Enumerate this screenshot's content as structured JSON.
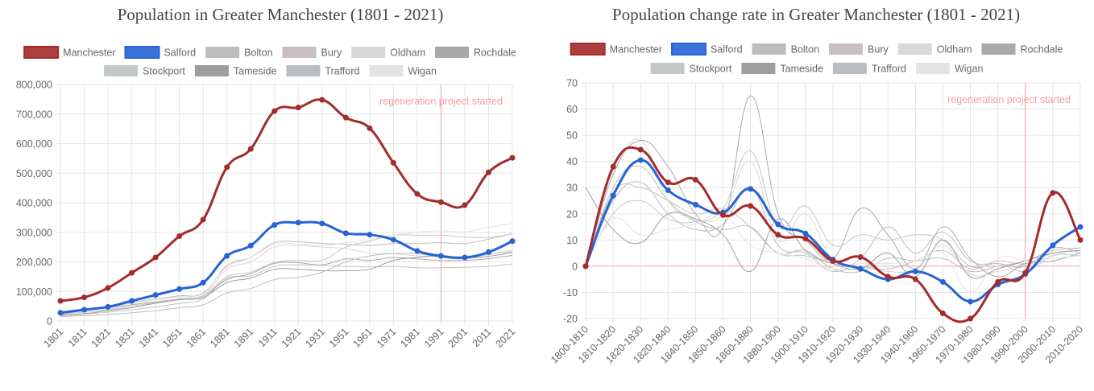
{
  "chart_data": [
    {
      "type": "line",
      "title": "Population in Greater Manchester (1801 - 2021)",
      "categories": [
        "1801",
        "1811",
        "1821",
        "1831",
        "1841",
        "1851",
        "1861",
        "1881",
        "1891",
        "1911",
        "1921",
        "1931",
        "1951",
        "1961",
        "1971",
        "1981",
        "1991",
        "2001",
        "2011",
        "2021"
      ],
      "series": [
        {
          "name": "Manchester",
          "color": "#a52a2a",
          "values": [
            68000,
            80000,
            112000,
            163000,
            215000,
            287000,
            343000,
            520000,
            582000,
            710000,
            722000,
            748000,
            688000,
            652000,
            535000,
            430000,
            402000,
            392000,
            503000,
            552000
          ]
        },
        {
          "name": "Salford",
          "color": "#2563d6",
          "values": [
            28000,
            38000,
            48000,
            68000,
            88000,
            108000,
            130000,
            220000,
            255000,
            325000,
            333000,
            330000,
            297000,
            292000,
            275000,
            237000,
            220000,
            215000,
            233000,
            270000
          ]
        },
        {
          "name": "Bolton",
          "color": "#bdbdbd",
          "values": [
            30000,
            40000,
            50000,
            63000,
            75000,
            85000,
            95000,
            185000,
            215000,
            265000,
            268000,
            262000,
            260000,
            255000,
            262000,
            262000,
            265000,
            262000,
            277000,
            296000
          ]
        },
        {
          "name": "Bury",
          "color": "#c9bfc0",
          "values": [
            18000,
            23000,
            30000,
            38000,
            48000,
            60000,
            75000,
            145000,
            152000,
            185000,
            190000,
            188000,
            185000,
            183000,
            185000,
            180000,
            180000,
            182000,
            185000,
            193000
          ]
        },
        {
          "name": "Oldham",
          "color": "#d8d8d8",
          "values": [
            22000,
            30000,
            40000,
            50000,
            60000,
            72000,
            85000,
            175000,
            200000,
            250000,
            255000,
            250000,
            245000,
            230000,
            228000,
            220000,
            218000,
            218000,
            225000,
            240000
          ]
        },
        {
          "name": "Rochdale",
          "color": "#a9a9a9",
          "values": [
            25000,
            35000,
            45000,
            55000,
            65000,
            75000,
            85000,
            140000,
            160000,
            195000,
            197000,
            190000,
            210000,
            205000,
            215000,
            210000,
            205000,
            205000,
            211000,
            222000
          ]
        },
        {
          "name": "Stockport",
          "color": "#c3cac6",
          "values": [
            25000,
            30000,
            38000,
            50000,
            63000,
            75000,
            85000,
            150000,
            165000,
            198000,
            205000,
            205000,
            250000,
            270000,
            290000,
            290000,
            290000,
            284000,
            283000,
            295000
          ]
        },
        {
          "name": "Tameside",
          "color": "#9e9e9e",
          "values": [
            20000,
            25000,
            35000,
            45000,
            60000,
            72000,
            80000,
            130000,
            145000,
            175000,
            175000,
            170000,
            170000,
            175000,
            205000,
            215000,
            220000,
            213000,
            219000,
            231000
          ]
        },
        {
          "name": "Trafford",
          "color": "#b8bec2",
          "values": [
            15000,
            18000,
            22000,
            28000,
            35000,
            45000,
            55000,
            95000,
            110000,
            140000,
            148000,
            165000,
            200000,
            220000,
            228000,
            228000,
            215000,
            210000,
            226000,
            235000
          ]
        },
        {
          "name": "Wigan",
          "color": "#e3e3e3",
          "values": [
            30000,
            38000,
            48000,
            60000,
            72000,
            82000,
            90000,
            190000,
            215000,
            260000,
            260000,
            255000,
            265000,
            275000,
            290000,
            300000,
            305000,
            301000,
            317000,
            330000
          ]
        }
      ],
      "ylim": [
        0,
        800000
      ],
      "yticks": [
        0,
        {
          "value": 100000,
          "label": "100,000"
        },
        {
          "value": 200000,
          "label": "200,000"
        },
        {
          "value": 300000,
          "label": "300,000"
        },
        {
          "value": 400000,
          "label": "400,000"
        },
        {
          "value": 500000,
          "label": "500,000"
        },
        {
          "value": 600000,
          "label": "600,000"
        },
        {
          "value": 700000,
          "label": "700,000"
        },
        {
          "value": 800000,
          "label": "800,000"
        }
      ],
      "grid": true,
      "annotation": {
        "text": "regeneration project started",
        "x": "1991",
        "color": "#f5a0a0"
      }
    },
    {
      "type": "line",
      "title": "Population change rate in Greater Manchester (1801 - 2021)",
      "categories": [
        "1800-1810",
        "1810-1820",
        "1820-1830",
        "1820-1840",
        "1840-1850",
        "1850-1860",
        "1860-1880",
        "1880-1900",
        "1900-1910",
        "1910-1920",
        "1920-1930",
        "1930-1940",
        "1940-1960",
        "1960-1970",
        "1970-1980",
        "1980-1990",
        "1990-2000",
        "2000-2010",
        "2010-2020"
      ],
      "series": [
        {
          "name": "Manchester",
          "color": "#a52a2a",
          "values": [
            0,
            38,
            44.5,
            32,
            33,
            19.5,
            23,
            12,
            10.5,
            2,
            3.5,
            -4,
            -5,
            -18,
            -20,
            -6,
            -2.5,
            28,
            10
          ]
        },
        {
          "name": "Salford",
          "color": "#2563d6",
          "values": [
            0,
            27,
            40.5,
            29,
            23.5,
            20.5,
            29.5,
            16,
            12.5,
            2.5,
            -1,
            -5,
            -2,
            -6,
            -13.5,
            -7,
            -3,
            8,
            15
          ]
        },
        {
          "name": "Bolton",
          "color": "#bdbdbd",
          "values": [
            0,
            30,
            38,
            25,
            17,
            14,
            15,
            5,
            6,
            -1,
            -2,
            3,
            2,
            3,
            -2,
            0,
            2,
            6,
            7
          ]
        },
        {
          "name": "Bury",
          "color": "#c9bfc0",
          "values": [
            0,
            28,
            30,
            25,
            20,
            22,
            15,
            5,
            4,
            1,
            0,
            -1,
            2,
            6,
            -1,
            2,
            1,
            5,
            6
          ]
        },
        {
          "name": "Oldham",
          "color": "#d8d8d8",
          "values": [
            0,
            35,
            48,
            25,
            18,
            20,
            40,
            10,
            20,
            2,
            0,
            -2,
            -1,
            8,
            -3,
            -2,
            0,
            4,
            7
          ]
        },
        {
          "name": "Rochdale",
          "color": "#a9a9a9",
          "values": [
            0,
            35,
            48,
            38,
            20,
            15,
            65,
            20,
            10,
            3,
            22,
            12,
            -1,
            15,
            3,
            -4,
            1,
            2,
            5
          ]
        },
        {
          "name": "Stockport",
          "color": "#c3cac6",
          "values": [
            0,
            20,
            25,
            18,
            17,
            22,
            44,
            15,
            23,
            8,
            12,
            10,
            12,
            10,
            0,
            1,
            -2,
            4,
            4
          ]
        },
        {
          "name": "Tameside",
          "color": "#9e9e9e",
          "values": [
            30,
            14,
            9,
            20,
            18,
            12,
            -2,
            18,
            6,
            1,
            -1,
            5,
            -4,
            10,
            -4,
            -1,
            2,
            5,
            6
          ]
        },
        {
          "name": "Trafford",
          "color": "#b8bec2",
          "values": [
            0,
            25,
            32,
            20,
            14,
            16,
            30,
            8,
            5,
            -2,
            3,
            15,
            5,
            13,
            2,
            1,
            0,
            7,
            5
          ]
        },
        {
          "name": "Wigan",
          "color": "#e3e3e3",
          "values": [
            0,
            18,
            12,
            14,
            16,
            20,
            8,
            5,
            3,
            -1,
            1,
            1,
            2,
            5,
            -10,
            3,
            2,
            3,
            4
          ]
        }
      ],
      "ylim": [
        -20,
        70
      ],
      "yticks": [
        -20,
        -10,
        0,
        10,
        20,
        30,
        40,
        50,
        60,
        70
      ],
      "grid": true,
      "zero_line_color": "#f5a0a0",
      "annotation": {
        "text": "regeneration project started",
        "x": "1990-2000",
        "color": "#f5a0a0"
      }
    }
  ]
}
